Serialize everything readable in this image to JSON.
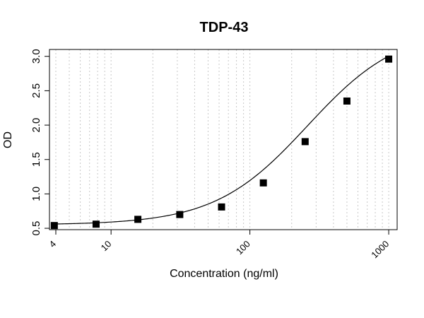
{
  "chart_data": {
    "type": "scatter",
    "title": "TDP-43",
    "xlabel": "Concentration (ng/ml)",
    "ylabel": "OD",
    "x_scale": "log10",
    "xlim": [
      3.6,
      1150
    ],
    "ylim": [
      0.48,
      3.1
    ],
    "x_tick_labels": [
      "4",
      "10",
      "100",
      "1000"
    ],
    "x_ticks": [
      4,
      10,
      100,
      1000
    ],
    "y_ticks": [
      0.5,
      1.0,
      1.5,
      2.0,
      2.5,
      3.0
    ],
    "y_tick_labels": [
      "0.5",
      "1.0",
      "1.5",
      "2.0",
      "2.5",
      "3.0"
    ],
    "grid": "vertical dotted at log minor ticks",
    "series": [
      {
        "marker": "filled-square",
        "x": [
          3.9,
          7.8,
          15.6,
          31.25,
          62.5,
          125,
          250,
          500,
          1000
        ],
        "y": [
          0.54,
          0.56,
          0.63,
          0.7,
          0.81,
          1.16,
          1.76,
          2.35,
          2.96
        ]
      }
    ],
    "fit_curve": {
      "model": "4PL",
      "a": 0.55,
      "d": 3.43,
      "c": 260,
      "b": 1.3
    }
  }
}
